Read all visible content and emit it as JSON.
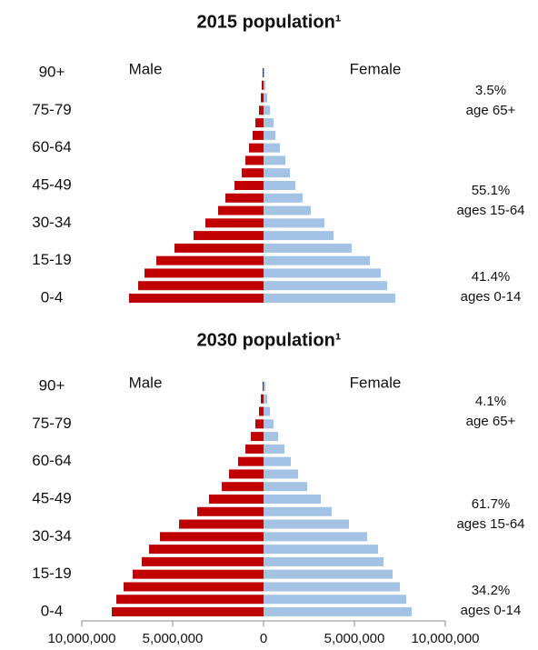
{
  "chart_data": [
    {
      "type": "bar",
      "title": "2015 population¹",
      "categories": [
        "0-4",
        null,
        null,
        "15-19",
        null,
        null,
        "30-34",
        null,
        null,
        "45-49",
        null,
        null,
        "60-64",
        null,
        null,
        "75-79",
        null,
        null,
        "90+"
      ],
      "series": [
        {
          "name": "Male",
          "color": "#c00000",
          "values": [
            7400000,
            6900000,
            6550000,
            5900000,
            4900000,
            3850000,
            3200000,
            2500000,
            2100000,
            1600000,
            1200000,
            1000000,
            800000,
            600000,
            450000,
            250000,
            150000,
            100000,
            50000
          ]
        },
        {
          "name": "Female",
          "color": "#a4c2e4",
          "values": [
            7250000,
            6800000,
            6450000,
            5850000,
            4850000,
            3850000,
            3350000,
            2600000,
            2150000,
            1750000,
            1450000,
            1200000,
            900000,
            650000,
            550000,
            350000,
            200000,
            100000,
            50000
          ]
        }
      ],
      "xlim": [
        -10000000,
        10000000
      ],
      "annotations": [
        {
          "share": 3.5,
          "share_label": "3.5%",
          "label": "age 65+"
        },
        {
          "share": 55.1,
          "share_label": "55.1%",
          "label": "ages 15-64"
        },
        {
          "share": 41.4,
          "share_label": "41.4%",
          "label": "ages 0-14"
        }
      ]
    },
    {
      "type": "bar",
      "title": "2030 population¹",
      "categories": [
        "0-4",
        null,
        null,
        "15-19",
        null,
        null,
        "30-34",
        null,
        null,
        "45-49",
        null,
        null,
        "60-64",
        null,
        null,
        "75-79",
        null,
        null,
        "90+"
      ],
      "series": [
        {
          "name": "Male",
          "color": "#c00000",
          "values": [
            8350000,
            8100000,
            7700000,
            7200000,
            6700000,
            6300000,
            5700000,
            4650000,
            3650000,
            3000000,
            2300000,
            1900000,
            1400000,
            1000000,
            700000,
            450000,
            250000,
            150000,
            50000
          ]
        },
        {
          "name": "Female",
          "color": "#a4c2e4",
          "values": [
            8150000,
            7850000,
            7500000,
            7100000,
            6600000,
            6300000,
            5700000,
            4700000,
            3750000,
            3150000,
            2400000,
            1900000,
            1500000,
            1150000,
            800000,
            550000,
            350000,
            200000,
            100000
          ]
        }
      ],
      "xlim": [
        -10000000,
        10000000
      ],
      "xticks": [
        {
          "value": -10000000,
          "label": "10,000,000"
        },
        {
          "value": -5000000,
          "label": "5,000,000"
        },
        0,
        {
          "value": 5000000,
          "label": "5,000,000"
        },
        {
          "value": 10000000,
          "label": "10,000,000"
        }
      ],
      "annotations": [
        {
          "share": 4.1,
          "share_label": "4.1%",
          "label": "age 65+"
        },
        {
          "share": 61.7,
          "share_label": "61.7%",
          "label": "ages 15-64"
        },
        {
          "share": 34.2,
          "share_label": "34.2%",
          "label": "ages 0-14"
        }
      ]
    }
  ]
}
